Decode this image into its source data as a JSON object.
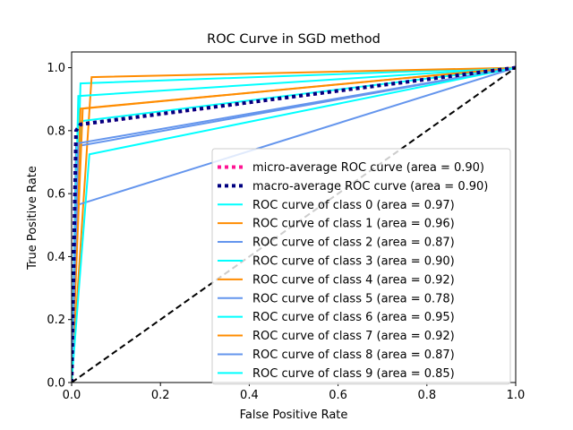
{
  "chart_data": {
    "type": "line",
    "title": "ROC Curve in SGD method",
    "xlabel": "False Positive Rate",
    "ylabel": "True Positive Rate",
    "xlim": [
      0,
      1
    ],
    "ylim": [
      0,
      1.05
    ],
    "grid": false,
    "legend_position": "lower-right",
    "xticks": [
      "0.0",
      "0.2",
      "0.4",
      "0.6",
      "0.8",
      "1.0"
    ],
    "yticks": [
      "0.0",
      "0.2",
      "0.4",
      "0.6",
      "0.8",
      "1.0"
    ],
    "series": [
      {
        "name": "micro-average ROC curve (area = 0.90)",
        "color": "#ff1493",
        "style": "dotted",
        "x": [
          0,
          0.01,
          0.02,
          1
        ],
        "y": [
          0,
          0.8,
          0.82,
          1
        ]
      },
      {
        "name": "macro-average ROC curve (area = 0.90)",
        "color": "#000080",
        "style": "dotted",
        "x": [
          0,
          0.01,
          0.02,
          1
        ],
        "y": [
          0,
          0.8,
          0.82,
          1
        ]
      },
      {
        "name": "ROC curve of class 0 (area = 0.97)",
        "color": "#00ffff",
        "style": "solid",
        "x": [
          0,
          0.02,
          1
        ],
        "y": [
          0,
          0.95,
          1
        ]
      },
      {
        "name": "ROC curve of class 1 (area = 0.96)",
        "color": "#ff8c00",
        "style": "solid",
        "x": [
          0,
          0.045,
          1
        ],
        "y": [
          0,
          0.97,
          1
        ]
      },
      {
        "name": "ROC curve of class 2 (area = 0.87)",
        "color": "#6495ed",
        "style": "solid",
        "x": [
          0,
          0.01,
          1
        ],
        "y": [
          0,
          0.75,
          1
        ]
      },
      {
        "name": "ROC curve of class 3 (area = 0.90)",
        "color": "#00ffff",
        "style": "solid",
        "x": [
          0,
          0.02,
          1
        ],
        "y": [
          0,
          0.83,
          1
        ]
      },
      {
        "name": "ROC curve of class 4 (area = 0.92)",
        "color": "#ff8c00",
        "style": "solid",
        "x": [
          0,
          0.02,
          1
        ],
        "y": [
          0,
          0.87,
          1
        ]
      },
      {
        "name": "ROC curve of class 5 (area = 0.78)",
        "color": "#6495ed",
        "style": "solid",
        "x": [
          0,
          0.015,
          1
        ],
        "y": [
          0,
          0.565,
          1
        ]
      },
      {
        "name": "ROC curve of class 6 (area = 0.95)",
        "color": "#00ffff",
        "style": "solid",
        "x": [
          0,
          0.015,
          1
        ],
        "y": [
          0,
          0.91,
          1
        ]
      },
      {
        "name": "ROC curve of class 7 (area = 0.92)",
        "color": "#ff8c00",
        "style": "solid",
        "x": [
          0,
          0.025,
          1
        ],
        "y": [
          0,
          0.87,
          1
        ]
      },
      {
        "name": "ROC curve of class 8 (area = 0.87)",
        "color": "#6495ed",
        "style": "solid",
        "x": [
          0,
          0.015,
          1
        ],
        "y": [
          0,
          0.76,
          1
        ]
      },
      {
        "name": "ROC curve of class 9 (area = 0.85)",
        "color": "#00ffff",
        "style": "solid",
        "x": [
          0,
          0.04,
          1
        ],
        "y": [
          0,
          0.725,
          1
        ]
      }
    ],
    "reference_line": {
      "color": "#000000",
      "style": "dashed",
      "x": [
        0,
        1
      ],
      "y": [
        0,
        1
      ]
    }
  }
}
